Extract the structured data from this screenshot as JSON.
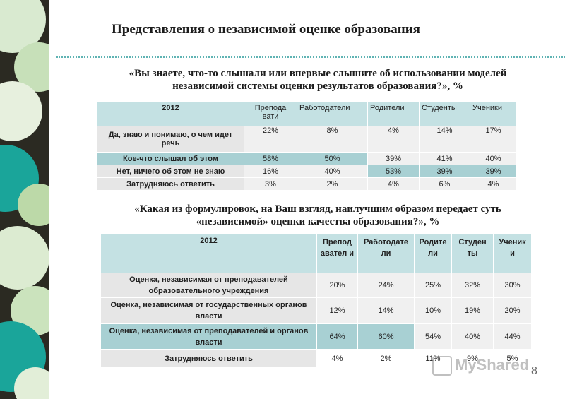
{
  "title": "Представления о независимой оценке образования",
  "question1": {
    "line1": "«Вы знаете, что-то слышали или впервые слышите об использовании моделей",
    "line2": "независимой системы оценки результатов образования?», %"
  },
  "table1": {
    "year": "2012",
    "headers": [
      "Препода вати",
      "Работодатели",
      "Родители",
      "Студенты",
      "Ученики"
    ],
    "rows": [
      {
        "label": "Да, знаю и понимаю, о чем идет речь",
        "values": [
          "22%",
          "8%",
          "4%",
          "14%",
          "17%"
        ]
      },
      {
        "label": "Кое-что слышал об этом",
        "values": [
          "58%",
          "50%",
          "39%",
          "41%",
          "40%"
        ]
      },
      {
        "label": "Нет, ничего об этом не знаю",
        "values": [
          "16%",
          "40%",
          "53%",
          "39%",
          "39%"
        ]
      },
      {
        "label": "Затрудняюсь ответить",
        "values": [
          "3%",
          "2%",
          "4%",
          "6%",
          "4%"
        ]
      }
    ]
  },
  "question2": {
    "line1": "«Какая из формулировок, на Ваш взгляд,  наилучшим образом передает суть",
    "line2": "«независимой» оценки качества образования?», %"
  },
  "table2": {
    "year": "2012",
    "headers": [
      "Препод авател и",
      "Работодате ли",
      "Родите ли",
      "Студен ты",
      "Ученик и"
    ],
    "rows": [
      {
        "label": "Оценка, независимая от преподавателей образовательного учреждения",
        "values": [
          "20%",
          "24%",
          "25%",
          "32%",
          "30%"
        ]
      },
      {
        "label": "Оценка, независимая от государственных органов власти",
        "values": [
          "12%",
          "14%",
          "10%",
          "19%",
          "20%"
        ]
      },
      {
        "label": "Оценка, независимая от преподавателей и органов власти",
        "values": [
          "64%",
          "60%",
          "54%",
          "40%",
          "44%"
        ]
      },
      {
        "label": "Затрудняюсь ответить",
        "values": [
          "4%",
          "2%",
          "11%",
          "9%",
          "5%"
        ]
      }
    ]
  },
  "watermark": {
    "text": "MyShared"
  },
  "page_number": "8",
  "colors": {
    "header_bg": "#c4e1e3",
    "highlight_bg": "#a8d0d3",
    "accent_teal": "#1aa59a"
  }
}
